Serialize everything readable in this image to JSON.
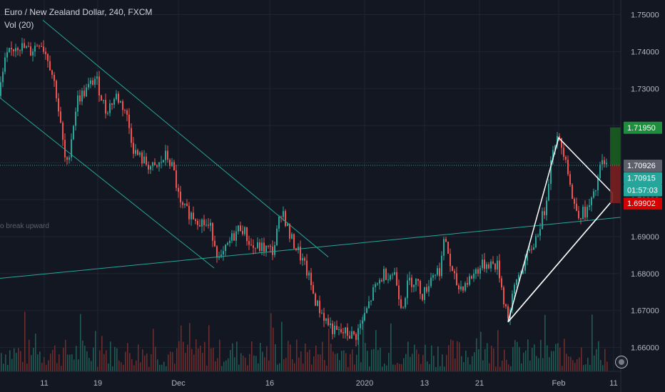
{
  "legend": {
    "title": "Euro / New Zealand Dollar, 240, FXCM",
    "indicator": "Vol (20)"
  },
  "annotation_text": "o break upward",
  "price_labels": {
    "target": "1.71950",
    "last": "1.70926",
    "bid": "1.70915",
    "countdown": "01:57:03",
    "stop": "1.69902"
  },
  "colors": {
    "background": "#131722",
    "grid": "#1f2433",
    "up": "#26a69a",
    "down": "#ef5350",
    "trendline": "#26a69a",
    "triangle": "#ffffff",
    "target_box": "#1b5e20",
    "target_label": "#1e8e3e",
    "stop_label": "#d50000",
    "last_label": "#5d606b",
    "bid_label": "#26a69a"
  },
  "chart_data": {
    "type": "candlestick",
    "title": "Euro / New Zealand Dollar, 240, FXCM",
    "xlabel": "",
    "ylabel": "",
    "ylim": [
      1.6545,
      1.7535
    ],
    "y_ticks": [
      "1.75000",
      "1.74000",
      "1.73000",
      "1.72000",
      "1.71000",
      "1.70000",
      "1.69000",
      "1.68000",
      "1.67000",
      "1.66000"
    ],
    "x_ticks": [
      "11",
      "19",
      "Dec",
      "16",
      "2020",
      "13",
      "21",
      "Feb",
      "11"
    ],
    "price_path": [
      [
        0,
        1.728
      ],
      [
        10,
        1.738
      ],
      [
        25,
        1.742
      ],
      [
        45,
        1.74
      ],
      [
        58,
        1.743
      ],
      [
        70,
        1.738
      ],
      [
        80,
        1.73
      ],
      [
        95,
        1.708
      ],
      [
        110,
        1.727
      ],
      [
        125,
        1.73
      ],
      [
        136,
        1.733
      ],
      [
        150,
        1.724
      ],
      [
        165,
        1.728
      ],
      [
        178,
        1.724
      ],
      [
        190,
        1.713
      ],
      [
        205,
        1.71
      ],
      [
        220,
        1.708
      ],
      [
        235,
        1.712
      ],
      [
        245,
        1.708
      ],
      [
        255,
        1.698
      ],
      [
        270,
        1.696
      ],
      [
        285,
        1.694
      ],
      [
        298,
        1.692
      ],
      [
        310,
        1.683
      ],
      [
        325,
        1.689
      ],
      [
        340,
        1.693
      ],
      [
        355,
        1.687
      ],
      [
        370,
        1.687
      ],
      [
        385,
        1.686
      ],
      [
        397,
        1.698
      ],
      [
        408,
        1.69
      ],
      [
        420,
        1.686
      ],
      [
        433,
        1.68
      ],
      [
        445,
        1.672
      ],
      [
        460,
        1.667
      ],
      [
        472,
        1.664
      ],
      [
        485,
        1.664
      ],
      [
        500,
        1.663
      ],
      [
        512,
        1.668
      ],
      [
        525,
        1.675
      ],
      [
        540,
        1.68
      ],
      [
        555,
        1.68
      ],
      [
        565,
        1.671
      ],
      [
        575,
        1.678
      ],
      [
        585,
        1.678
      ],
      [
        595,
        1.674
      ],
      [
        608,
        1.68
      ],
      [
        618,
        1.681
      ],
      [
        626,
        1.69
      ],
      [
        635,
        1.68
      ],
      [
        645,
        1.676
      ],
      [
        658,
        1.678
      ],
      [
        670,
        1.681
      ],
      [
        685,
        1.683
      ],
      [
        700,
        1.682
      ],
      [
        708,
        1.673
      ],
      [
        715,
        1.668
      ],
      [
        725,
        1.678
      ],
      [
        740,
        1.684
      ],
      [
        752,
        1.689
      ],
      [
        765,
        1.697
      ],
      [
        778,
        1.716
      ],
      [
        785,
        1.716
      ],
      [
        795,
        1.712
      ],
      [
        805,
        1.699
      ],
      [
        815,
        1.696
      ],
      [
        825,
        1.697
      ],
      [
        835,
        1.701
      ],
      [
        845,
        1.71
      ],
      [
        852,
        1.709
      ]
    ],
    "trendlines": [
      {
        "name": "channel-upper",
        "points": [
          [
            60,
            1.7485
          ],
          [
            460,
            1.6845
          ]
        ]
      },
      {
        "name": "channel-lower",
        "points": [
          [
            0,
            1.7275
          ],
          [
            300,
            1.6815
          ]
        ]
      },
      {
        "name": "support-line",
        "points": [
          [
            0,
            1.6787
          ],
          [
            870,
            1.6952
          ]
        ]
      }
    ],
    "triangle": {
      "points": [
        [
          712,
          1.6669
        ],
        [
          858,
          1.6997
        ],
        [
          858,
          1.7018
        ],
        [
          783,
          1.7167
        ]
      ]
    },
    "position_box": {
      "entry": 1.70926,
      "target": 1.7195,
      "stop": 1.69902
    }
  }
}
